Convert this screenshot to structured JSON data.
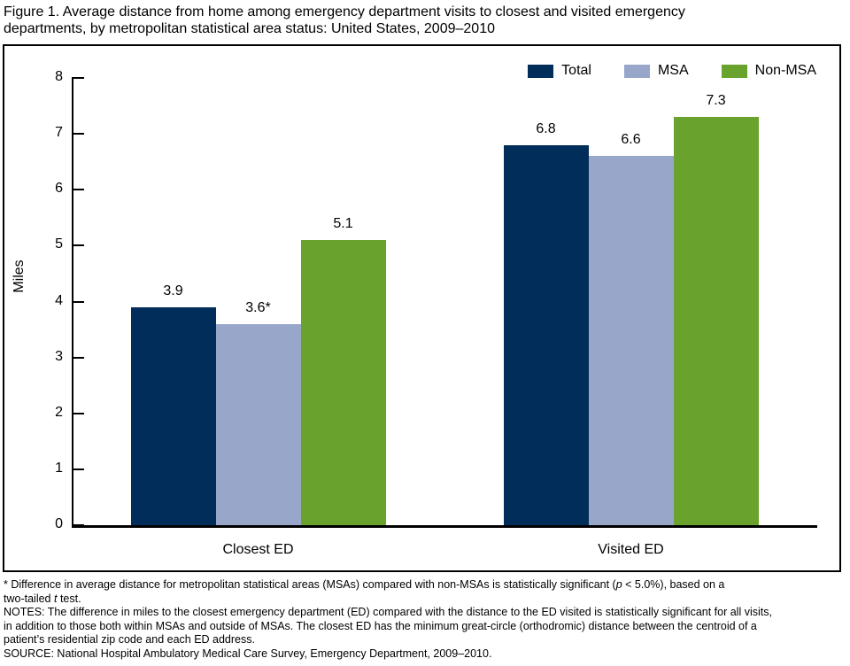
{
  "header": {
    "title_lines": [
      "Figure 1. Average distance from home among emergency department visits to closest and visited emergency",
      "departments, by metropolitan statistical area status: United States, 2009–2010"
    ]
  },
  "chart_data": {
    "type": "bar",
    "title": "Figure 1. Average distance from home among emergency department visits to closest and visited emergency departments, by metropolitan statistical area status: United States, 2009–2010",
    "xlabel": "",
    "ylabel": "Miles",
    "ylim": [
      0,
      8
    ],
    "ytick_interval": 1,
    "grid": false,
    "legend_position": "top-right",
    "categories": [
      "Closest ED",
      "Visited ED"
    ],
    "series": [
      {
        "name": "Total",
        "color": "#002d5a",
        "values": [
          3.9,
          6.8
        ],
        "labels": [
          "3.9",
          "6.8"
        ]
      },
      {
        "name": "MSA",
        "color": "#97a6c9",
        "values": [
          3.6,
          6.6
        ],
        "labels": [
          "3.6*",
          "6.6"
        ]
      },
      {
        "name": "Non-MSA",
        "color": "#69a32d",
        "values": [
          5.1,
          7.3
        ],
        "labels": [
          "5.1",
          "7.3"
        ]
      }
    ],
    "axis_color": "#000000"
  },
  "footnotes": [
    {
      "segments": [
        {
          "t": "* Difference in average distance for metropolitan statistical areas (MSAs) compared with non-MSAs is statistically significant ("
        },
        {
          "t": "p",
          "i": true
        },
        {
          "t": " < 5.0%), based on a"
        }
      ]
    },
    {
      "segments": [
        {
          "t": "two-tailed "
        },
        {
          "t": "t",
          "i": true
        },
        {
          "t": " test."
        }
      ]
    },
    {
      "segments": [
        {
          "t": "NOTES: The difference in miles to the closest emergency department (ED) compared with the distance to the ED visited is statistically significant for all visits,"
        }
      ]
    },
    {
      "segments": [
        {
          "t": "in addition to those both within MSAs and outside of MSAs. The closest ED has the minimum great-circle (orthodromic) distance between the centroid of a"
        }
      ]
    },
    {
      "segments": [
        {
          "t": "patient’s residential zip code and each ED address."
        }
      ]
    },
    {
      "segments": [
        {
          "t": "SOURCE: National Hospital Ambulatory Medical Care Survey, Emergency Department, 2009–2010."
        }
      ]
    }
  ]
}
